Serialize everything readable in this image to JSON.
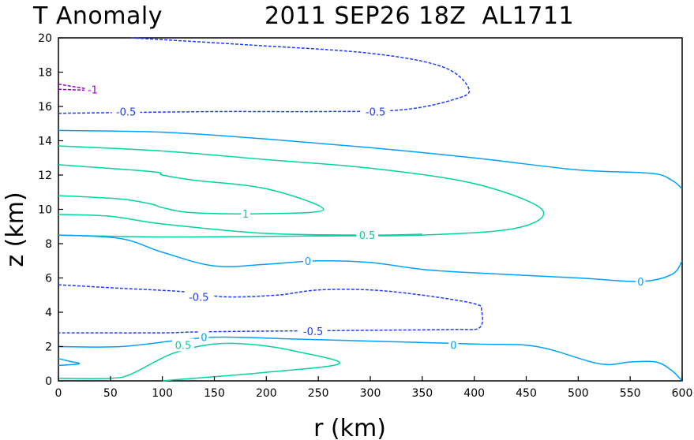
{
  "chart_data": {
    "type": "contour",
    "title": "T Anomaly",
    "subtitle": "2011 SEP26 18Z  AL1711",
    "xlabel": "r (km)",
    "ylabel": "z (km)",
    "xlim": [
      0,
      600
    ],
    "ylim": [
      0,
      20
    ],
    "xticks": [
      "0",
      "50",
      "100",
      "150",
      "200",
      "250",
      "300",
      "350",
      "400",
      "450",
      "500",
      "550",
      "600"
    ],
    "yticks": [
      "0",
      "2",
      "4",
      "6",
      "8",
      "10",
      "12",
      "14",
      "16",
      "18",
      "20"
    ],
    "grid": false,
    "colors": {
      "neg1": "#a000c8",
      "neg05": "#1e3cff",
      "zero": "#00a0ff",
      "pos05": "#00d2a0",
      "pos1": "#00dc00"
    },
    "contours": [
      {
        "level": -0.5,
        "color": "#1e3cff",
        "dashed": true,
        "points": [
          [
            70,
            20
          ],
          [
            180,
            19.6
          ],
          [
            300,
            19.1
          ],
          [
            370,
            18.3
          ],
          [
            395,
            17
          ],
          [
            380,
            16.4
          ],
          [
            330,
            15.8
          ],
          [
            250,
            15.7
          ],
          [
            150,
            15.7
          ],
          [
            0,
            15.6
          ]
        ]
      },
      {
        "level": -1,
        "color": "#a000c8",
        "dashed": true,
        "points": [
          [
            0,
            17.3
          ],
          [
            10,
            17.2
          ],
          [
            30,
            17
          ]
        ]
      },
      {
        "level": -1,
        "color": "#a000c8",
        "dashed": true,
        "points": [
          [
            0,
            17.0
          ],
          [
            25,
            16.95
          ]
        ]
      },
      {
        "level": 0,
        "color": "#00a0ff",
        "dashed": false,
        "points": [
          [
            0,
            14.6
          ],
          [
            100,
            14.5
          ],
          [
            200,
            14.1
          ],
          [
            300,
            13.6
          ],
          [
            400,
            13
          ],
          [
            500,
            12.3
          ],
          [
            570,
            12.1
          ],
          [
            590,
            11.7
          ],
          [
            600,
            11.2
          ]
        ]
      },
      {
        "level": 0.5,
        "color": "#00d2a0",
        "dashed": false,
        "points": [
          [
            0,
            13.7
          ],
          [
            100,
            13.4
          ],
          [
            200,
            12.9
          ],
          [
            300,
            12.4
          ],
          [
            400,
            11.5
          ],
          [
            465,
            10.0
          ],
          [
            440,
            8.9
          ],
          [
            350,
            8.5
          ],
          [
            250,
            8.45
          ],
          [
            150,
            8.4
          ],
          [
            80,
            8.4
          ],
          [
            0,
            8.5
          ]
        ]
      },
      {
        "level": 1,
        "color": "#00d2a0",
        "dashed": false,
        "points": [
          [
            0,
            12.6
          ],
          [
            90,
            12.2
          ],
          [
            100,
            12.0
          ],
          [
            130,
            11.7
          ],
          [
            200,
            11.2
          ],
          [
            255,
            10.0
          ],
          [
            200,
            9.75
          ],
          [
            130,
            9.8
          ],
          [
            100,
            10.1
          ],
          [
            90,
            10.3
          ],
          [
            60,
            10.6
          ],
          [
            0,
            10.8
          ]
        ]
      },
      {
        "level": 1,
        "color": "#00d2a0",
        "dashed": false,
        "points": [
          [
            0,
            9.7
          ],
          [
            50,
            9.6
          ],
          [
            100,
            9.15
          ],
          [
            200,
            8.6
          ],
          [
            300,
            8.5
          ],
          [
            350,
            8.55
          ]
        ]
      },
      {
        "level": 0,
        "color": "#00a0ff",
        "dashed": false,
        "points": [
          [
            0,
            8.5
          ],
          [
            60,
            8.3
          ],
          [
            100,
            7.5
          ],
          [
            150,
            6.7
          ],
          [
            200,
            6.8
          ],
          [
            250,
            7
          ],
          [
            300,
            6.9
          ],
          [
            350,
            6.5
          ],
          [
            400,
            6.3
          ],
          [
            500,
            6
          ],
          [
            560,
            5.8
          ],
          [
            590,
            6.2
          ],
          [
            600,
            7
          ]
        ]
      },
      {
        "level": -0.5,
        "color": "#1e3cff",
        "dashed": true,
        "points": [
          [
            0,
            5.6
          ],
          [
            60,
            5.4
          ],
          [
            120,
            5.2
          ],
          [
            160,
            4.9
          ],
          [
            210,
            5.0
          ],
          [
            250,
            5.3
          ],
          [
            300,
            5.3
          ],
          [
            350,
            5.0
          ],
          [
            400,
            4.5
          ],
          [
            407,
            4.1
          ],
          [
            405,
            3.1
          ],
          [
            380,
            3.0
          ],
          [
            300,
            2.95
          ],
          [
            200,
            2.9
          ],
          [
            130,
            2.85
          ],
          [
            100,
            2.8
          ],
          [
            0,
            2.8
          ]
        ]
      },
      {
        "level": 0,
        "color": "#00a0ff",
        "dashed": false,
        "points": [
          [
            0,
            2.0
          ],
          [
            60,
            2.0
          ],
          [
            120,
            2.4
          ],
          [
            160,
            2.55
          ],
          [
            250,
            2.4
          ],
          [
            400,
            2.15
          ],
          [
            460,
            2.0
          ],
          [
            520,
            1.0
          ],
          [
            550,
            1.1
          ],
          [
            575,
            1.1
          ],
          [
            590,
            0.6
          ],
          [
            600,
            0
          ]
        ]
      },
      {
        "level": 0,
        "color": "#00a0ff",
        "dashed": false,
        "points": [
          [
            0,
            1.3
          ],
          [
            10,
            1.15
          ],
          [
            20,
            1.0
          ],
          [
            0,
            0.9
          ]
        ]
      },
      {
        "level": 0.5,
        "color": "#00d2a0",
        "dashed": false,
        "points": [
          [
            0,
            0.15
          ],
          [
            50,
            0.15
          ],
          [
            70,
            0.4
          ],
          [
            110,
            1.6
          ],
          [
            150,
            2.15
          ],
          [
            190,
            2.1
          ],
          [
            230,
            1.7
          ],
          [
            270,
            1.0
          ],
          [
            200,
            0.5
          ],
          [
            120,
            0.1
          ],
          [
            100,
            0
          ]
        ]
      }
    ],
    "contour_labels": [
      {
        "text": "-1",
        "x": 33,
        "y": 17.0,
        "color": "#a000c8"
      },
      {
        "text": "-0.5",
        "x": 65,
        "y": 15.7,
        "color": "#1e3cff"
      },
      {
        "text": "-0.5",
        "x": 305,
        "y": 15.7,
        "color": "#1e3cff"
      },
      {
        "text": "1",
        "x": 180,
        "y": 9.75,
        "color": "#00d2a0"
      },
      {
        "text": "0.5",
        "x": 297,
        "y": 8.5,
        "color": "#00d2a0"
      },
      {
        "text": "0",
        "x": 240,
        "y": 7.0,
        "color": "#00a0ff"
      },
      {
        "text": "0",
        "x": 560,
        "y": 5.8,
        "color": "#00a0ff"
      },
      {
        "text": "-0.5",
        "x": 135,
        "y": 4.9,
        "color": "#1e3cff"
      },
      {
        "text": "-0.5",
        "x": 245,
        "y": 2.9,
        "color": "#1e3cff"
      },
      {
        "text": "0",
        "x": 380,
        "y": 2.1,
        "color": "#00a0ff"
      },
      {
        "text": "0.5",
        "x": 120,
        "y": 2.1,
        "color": "#00d2a0"
      },
      {
        "text": "0",
        "x": 140,
        "y": 2.55,
        "color": "#00a0ff"
      }
    ]
  }
}
